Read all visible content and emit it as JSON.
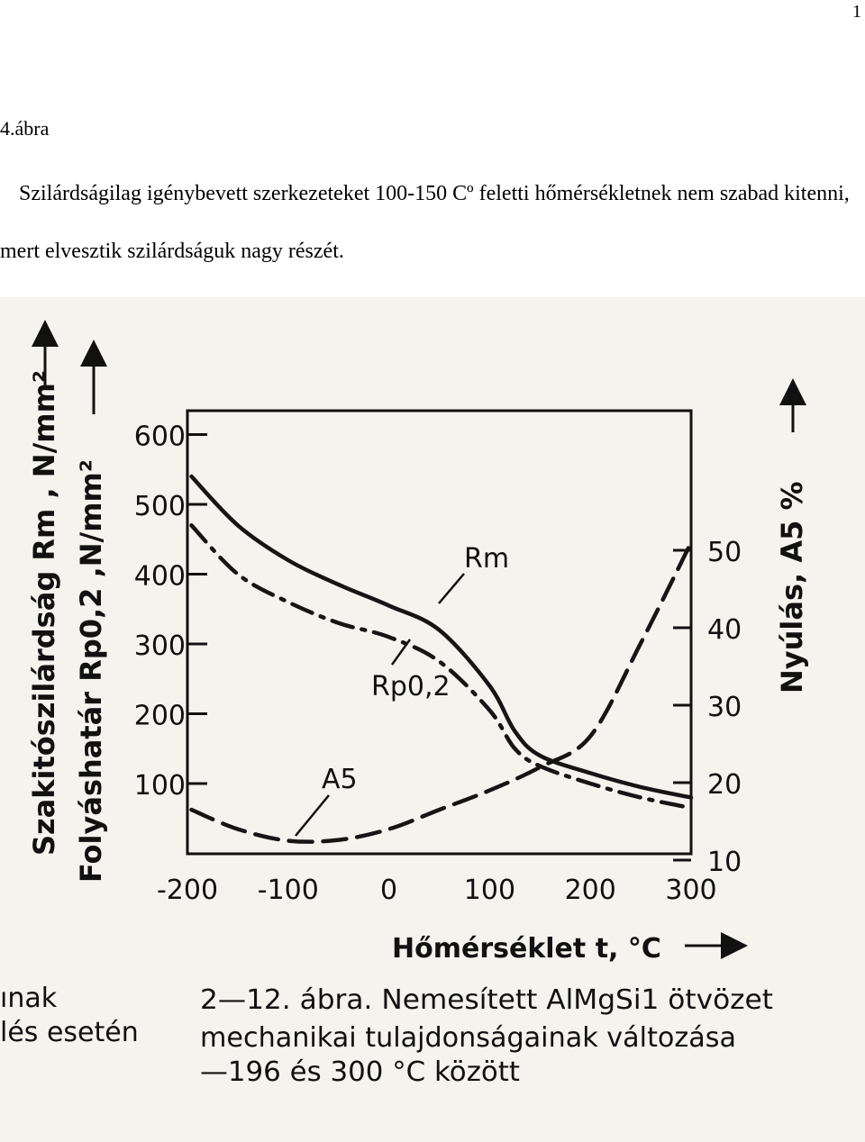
{
  "page": {
    "number": "1",
    "figure_label": "4.ábra",
    "paragraph": "Szilárdságilag igénybevett szerkezeteket 100-150 Cº feletti hőmérsékletnek nem szabad kitenni, mert elvesztik szilárdságuk nagy részét."
  },
  "scan": {
    "left_fragment_1": "ınak",
    "left_fragment_2": "lés esetén",
    "caption_line1": "2—12. ábra. Nemesített AlMgSi1 ötvözet",
    "caption_line2": "mechanikai tulajdonságainak változása",
    "caption_line3": "—196 és 300 °C között"
  },
  "chart_data": {
    "type": "line",
    "xlabel": "Hőmérséklet  t, °C",
    "ylabel_left_1": "Szakitószilárdság  Rm , N/mm²",
    "ylabel_left_2": "Folyáshatár  Rp0,2 ,N/mm²",
    "ylabel_right": "Nyúlás,  A5 %",
    "xlim": [
      -200,
      300
    ],
    "ylim_left": [
      0,
      600
    ],
    "ylim_right": [
      10,
      60
    ],
    "x_ticks": [
      "-200",
      "-100",
      "0",
      "100",
      "200",
      "300"
    ],
    "y_left_ticks": [
      "100",
      "200",
      "300",
      "400",
      "500",
      "600"
    ],
    "y_right_ticks": [
      "10",
      "20",
      "30",
      "40",
      "50"
    ],
    "series": [
      {
        "name": "Rm",
        "axis": "left",
        "style": "solid",
        "x": [
          -196,
          -150,
          -100,
          -50,
          0,
          50,
          100,
          125,
          150,
          200,
          250,
          300
        ],
        "y": [
          540,
          470,
          420,
          385,
          355,
          320,
          240,
          175,
          140,
          115,
          95,
          80
        ]
      },
      {
        "name": "Rp0,2",
        "axis": "left",
        "style": "dashed",
        "x": [
          -196,
          -150,
          -100,
          -50,
          0,
          50,
          100,
          125,
          150,
          200,
          250,
          300
        ],
        "y": [
          470,
          400,
          360,
          330,
          310,
          275,
          205,
          150,
          125,
          100,
          80,
          65
        ]
      },
      {
        "name": "A5",
        "axis": "right",
        "style": "dashed",
        "x": [
          -196,
          -150,
          -100,
          -50,
          0,
          50,
          100,
          150,
          200,
          250,
          300
        ],
        "y": [
          16.5,
          14,
          12.5,
          12.6,
          14,
          16.5,
          19,
          22,
          26,
          38,
          51
        ]
      }
    ]
  }
}
